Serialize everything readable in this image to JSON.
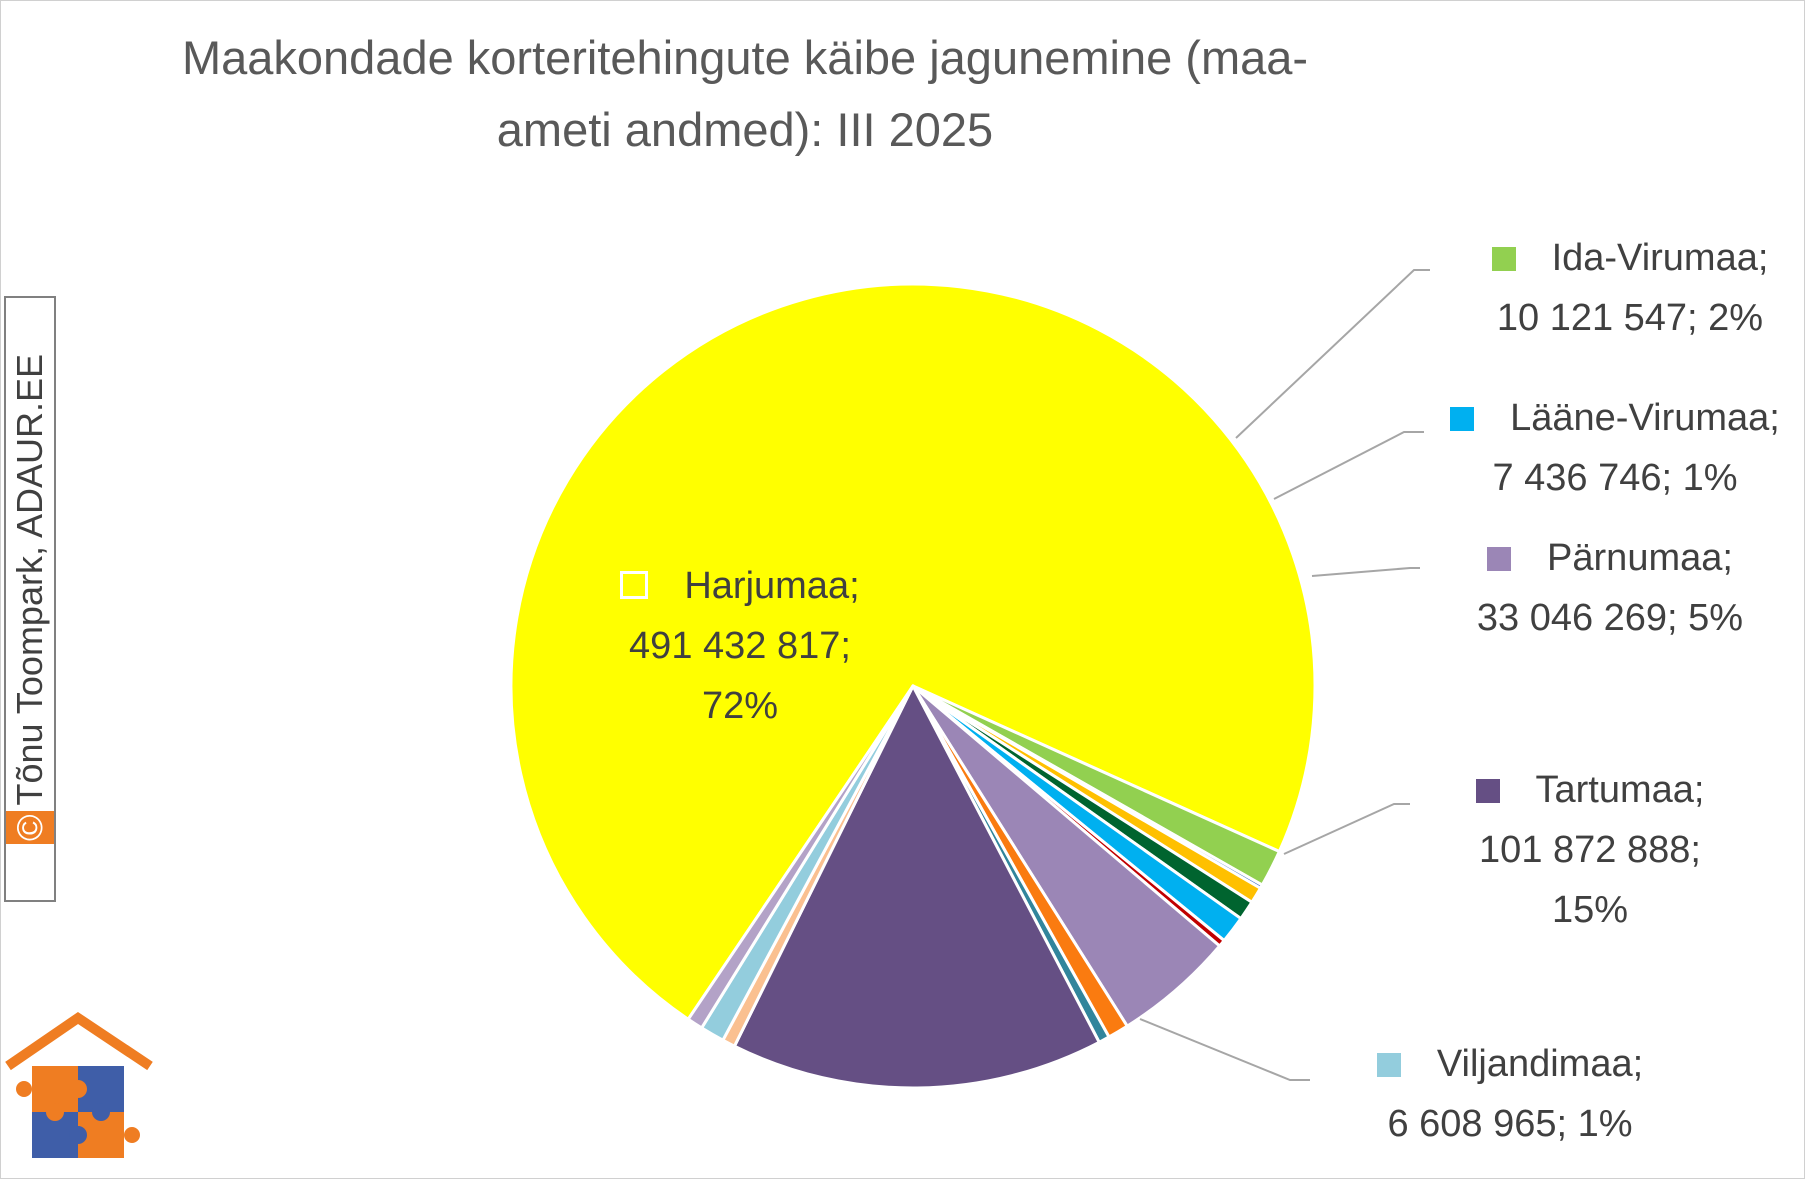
{
  "chart_data": {
    "type": "pie",
    "title": "Maakondade korteritehingute käibe jagunemine (maa-ameti andmed): III 2025",
    "title_lines": [
      "Maakondade korteritehingute käibe jagunemine (maa-",
      "ameti andmed): III 2025"
    ],
    "legend": "none",
    "slices": [
      {
        "name": "Harjumaa",
        "value": 491432817,
        "percent": "72%",
        "color": "#ffff00",
        "label_lines": [
          "Harjumaa;",
          "491 432 817;",
          "72%"
        ]
      },
      {
        "name": "Ida-Virumaa",
        "value": 10121547,
        "percent": "2%",
        "color": "#92d050",
        "label_lines": [
          "Ida-Virumaa;",
          "10 121 547; 2%"
        ]
      },
      {
        "name": "",
        "value": 1000000,
        "color": "#4472c4"
      },
      {
        "name": "",
        "value": 4400000,
        "color": "#ffc000"
      },
      {
        "name": "",
        "value": 5300000,
        "color": "#00642f"
      },
      {
        "name": "Lääne-Virumaa",
        "value": 7436746,
        "percent": "1%",
        "color": "#00b0f0",
        "label_lines": [
          "Lääne-Virumaa;",
          "7 436 746; 1%"
        ]
      },
      {
        "name": "",
        "value": 1900000,
        "color": "#c00000"
      },
      {
        "name": "Pärnumaa",
        "value": 33046269,
        "percent": "5%",
        "color": "#9b86b6",
        "label_lines": [
          "Pärnumaa;",
          "33 046 269; 5%"
        ]
      },
      {
        "name": "",
        "value": 5700000,
        "color": "#fa7b10"
      },
      {
        "name": "",
        "value": 3000000,
        "color": "#31859c"
      },
      {
        "name": "Tartumaa",
        "value": 101872888,
        "percent": "15%",
        "color": "#654f84",
        "label_lines": [
          "Tartumaa;",
          "101 872 888;",
          "15%"
        ]
      },
      {
        "name": "",
        "value": 3500000,
        "color": "#fac090"
      },
      {
        "name": "Viljandimaa",
        "value": 6608965,
        "percent": "1%",
        "color": "#93cddd",
        "label_lines": [
          "Viljandimaa;",
          "6 608 965; 1%"
        ]
      },
      {
        "name": "",
        "value": 4300000,
        "color": "#b3a2c7"
      }
    ]
  },
  "watermark": {
    "copyright_mark": "©",
    "text": "Tõnu Toompark, ADAUR.EE"
  },
  "logo": {
    "icon": "house-puzzle-logo-icon",
    "colors": {
      "roof": "#ef7d22",
      "puzzle_orange": "#ef7d22",
      "puzzle_blue": "#3f5ea8"
    }
  }
}
